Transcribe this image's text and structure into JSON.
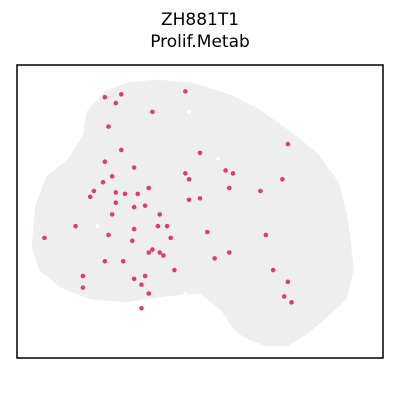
{
  "title": "ZH881T1",
  "subtitle": "Prolif.Metab",
  "chart_data": {
    "type": "scatter",
    "title": "ZH881T1",
    "subtitle": "Prolif.Metab",
    "xlabel": "",
    "ylabel": "",
    "xlim": [
      0,
      100
    ],
    "ylim": [
      0,
      100
    ],
    "axes_ticks": false,
    "background_color": "#eeeeee",
    "highlight_color": "#e03c6e",
    "tissue_outline": [
      [
        59,
        90
      ],
      [
        62,
        93
      ],
      [
        68,
        96
      ],
      [
        74,
        96
      ],
      [
        79,
        92
      ],
      [
        84,
        87
      ],
      [
        90,
        80
      ],
      [
        92,
        70
      ],
      [
        91,
        58
      ],
      [
        90,
        50
      ],
      [
        88,
        40
      ],
      [
        82,
        30
      ],
      [
        74,
        22
      ],
      [
        66,
        15
      ],
      [
        58,
        10
      ],
      [
        48,
        6
      ],
      [
        38,
        5
      ],
      [
        30,
        6
      ],
      [
        24,
        9
      ],
      [
        19,
        16
      ],
      [
        18,
        24
      ],
      [
        14,
        32
      ],
      [
        8,
        38
      ],
      [
        5,
        48
      ],
      [
        4,
        62
      ],
      [
        6,
        70
      ],
      [
        12,
        76
      ],
      [
        20,
        80
      ],
      [
        30,
        81
      ],
      [
        40,
        79
      ],
      [
        50,
        78
      ],
      [
        56,
        84
      ]
    ],
    "tissue_holes": [
      [
        55,
        32
      ],
      [
        46,
        78
      ],
      [
        22,
        55
      ],
      [
        47,
        16
      ],
      [
        17,
        24
      ]
    ],
    "highlighted_spots": [
      [
        75,
        81
      ],
      [
        73,
        79
      ],
      [
        74,
        74
      ],
      [
        70,
        70
      ],
      [
        36,
        78
      ],
      [
        34,
        83
      ],
      [
        18,
        76
      ],
      [
        34,
        75
      ],
      [
        32,
        73
      ],
      [
        18,
        72
      ],
      [
        24,
        67
      ],
      [
        29,
        67
      ],
      [
        7.5,
        59
      ],
      [
        36,
        64
      ],
      [
        39,
        64
      ],
      [
        40,
        65
      ],
      [
        31.5,
        60
      ],
      [
        26,
        51
      ],
      [
        35,
        72
      ],
      [
        43,
        70
      ],
      [
        32,
        56
      ],
      [
        16,
        55
      ],
      [
        20,
        45
      ],
      [
        21,
        43
      ],
      [
        29.5,
        44
      ],
      [
        27,
        47
      ],
      [
        38.5,
        55
      ],
      [
        41,
        55
      ],
      [
        33,
        44
      ],
      [
        35,
        48
      ],
      [
        39,
        51
      ],
      [
        42,
        59
      ],
      [
        25,
        58
      ],
      [
        32,
        48.5
      ],
      [
        36,
        42
      ],
      [
        37,
        63
      ],
      [
        26,
        38
      ],
      [
        23.5,
        40
      ],
      [
        24,
        33
      ],
      [
        47,
        39
      ],
      [
        57,
        36
      ],
      [
        52,
        57
      ],
      [
        72.5,
        39
      ],
      [
        74,
        27
      ],
      [
        66.5,
        43
      ],
      [
        68,
        58
      ],
      [
        58,
        64
      ],
      [
        54,
        66
      ],
      [
        59,
        37
      ],
      [
        58,
        42
      ],
      [
        46,
        37
      ],
      [
        47,
        46
      ],
      [
        50,
        30
      ],
      [
        50,
        45.5
      ],
      [
        27,
        43.5
      ],
      [
        32,
        35
      ],
      [
        28.5,
        29
      ],
      [
        25,
        21
      ],
      [
        37,
        16
      ],
      [
        24,
        11
      ],
      [
        27,
        13
      ],
      [
        28.5,
        10
      ],
      [
        46,
        9
      ]
    ]
  }
}
